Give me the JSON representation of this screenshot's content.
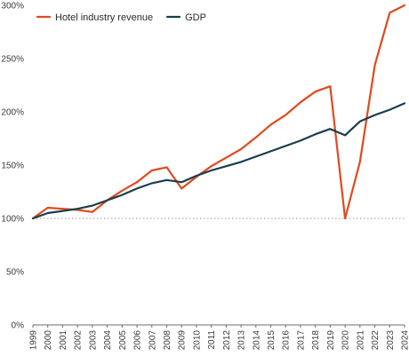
{
  "chart_data": {
    "type": "line",
    "title": "",
    "xlabel": "",
    "ylabel": "",
    "x": [
      1999,
      2000,
      2001,
      2002,
      2003,
      2004,
      2005,
      2006,
      2007,
      2008,
      2009,
      2010,
      2011,
      2012,
      2013,
      2014,
      2015,
      2016,
      2017,
      2018,
      2019,
      2020,
      2021,
      2022,
      2023,
      2024
    ],
    "x_tick_labels": [
      "1999",
      "2000",
      "2001",
      "2002",
      "2003",
      "2004",
      "2005",
      "2006",
      "2007",
      "2008",
      "2009",
      "2010",
      "2011",
      "2012",
      "2013",
      "2014",
      "2015",
      "2016",
      "2017",
      "2018",
      "2019",
      "2020",
      "2021",
      "2022",
      "2023",
      "2024"
    ],
    "ylim": [
      0,
      300
    ],
    "y_ticks": [
      0,
      50,
      100,
      150,
      200,
      250,
      300
    ],
    "y_tick_labels": [
      "0%",
      "50%",
      "100%",
      "150%",
      "200%",
      "250%",
      "300%"
    ],
    "reference_line": {
      "y": 100,
      "style": "dotted"
    },
    "legend": {
      "position": "top-left"
    },
    "series": [
      {
        "name": "Hotel industry revenue",
        "color": "#e04a1e",
        "values": [
          100,
          110,
          109,
          108,
          106,
          117,
          126,
          134,
          145,
          148,
          128,
          139,
          149,
          157,
          165,
          176,
          188,
          197,
          209,
          219,
          224,
          100,
          153,
          244,
          293,
          300
        ]
      },
      {
        "name": "GDP",
        "color": "#1a3d4c",
        "values": [
          100,
          105,
          107,
          109,
          112,
          117,
          122,
          128,
          133,
          136,
          134,
          140,
          145,
          149,
          153,
          158,
          163,
          168,
          173,
          179,
          184,
          178,
          191,
          197,
          202,
          208
        ]
      }
    ]
  }
}
